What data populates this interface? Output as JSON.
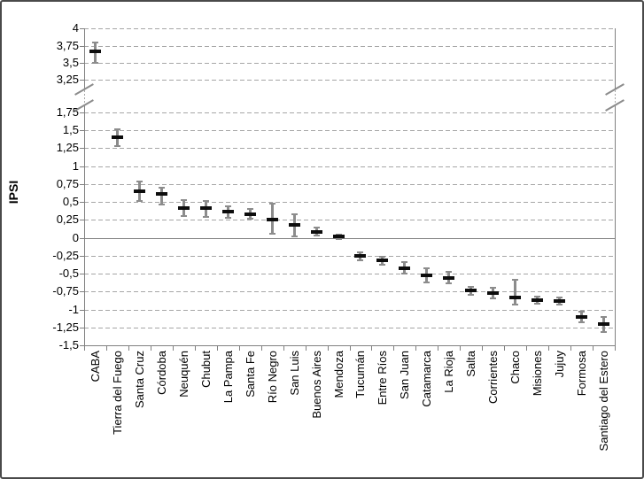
{
  "chart_data": {
    "type": "scatter",
    "title": "",
    "xlabel": "",
    "ylabel": "IPSI",
    "legend": "none",
    "grid": "dashed horizontal gridlines every 0.25",
    "zero_line": true,
    "y_axis": {
      "decimal_separator": ",",
      "axis_break": {
        "between_lower": 1.75,
        "between_upper": 3.25,
        "break_marks_on": [
          "left-axis",
          "right-border"
        ]
      },
      "segment_lower_range": [
        -1.5,
        1.75
      ],
      "segment_upper_range": [
        3.25,
        4
      ],
      "ticks": [
        {
          "v": 4,
          "label": "4"
        },
        {
          "v": 3.75,
          "label": "3,75"
        },
        {
          "v": 3.5,
          "label": "3,5"
        },
        {
          "v": 3.25,
          "label": "3,25"
        },
        {
          "v": 1.75,
          "label": "1,75"
        },
        {
          "v": 1.5,
          "label": "1,5"
        },
        {
          "v": 1.25,
          "label": "1,25"
        },
        {
          "v": 1,
          "label": "1"
        },
        {
          "v": 0.75,
          "label": "0,75"
        },
        {
          "v": 0.5,
          "label": "0,5"
        },
        {
          "v": 0.25,
          "label": "0,25"
        },
        {
          "v": 0,
          "label": "0"
        },
        {
          "v": -0.25,
          "label": "-0,25"
        },
        {
          "v": -0.5,
          "label": "-0,5"
        },
        {
          "v": -0.75,
          "label": "-0,75"
        },
        {
          "v": -1,
          "label": "-1"
        },
        {
          "v": -1.25,
          "label": "-1,25"
        },
        {
          "v": -1.5,
          "label": "-1,5"
        }
      ]
    },
    "categories": [
      "CABA",
      "Tierra del Fuego",
      "Santa Cruz",
      "Córdoba",
      "Neuquén",
      "Chubut",
      "La Pampa",
      "Santa Fe",
      "Río Negro",
      "San Luis",
      "Buenos Aires",
      "Mendoza",
      "Tucumán",
      "Entre Ríos",
      "San Juan",
      "Catamarca",
      "La Rioja",
      "Salta",
      "Corrientes",
      "Chaco",
      "Misiones",
      "Jujuy",
      "Formosa",
      "Santiago del Estero"
    ],
    "series": [
      {
        "name": "IPSI",
        "marker": "black horizontal dash with gray error bar",
        "values": [
          3.66,
          1.41,
          0.65,
          0.61,
          0.42,
          0.41,
          0.37,
          0.33,
          0.25,
          0.18,
          0.08,
          0.02,
          -0.25,
          -0.31,
          -0.42,
          -0.52,
          -0.56,
          -0.73,
          -0.77,
          -0.83,
          -0.87,
          -0.88,
          -1.1,
          -1.2
        ],
        "ci_low": [
          3.5,
          1.28,
          0.52,
          0.47,
          0.31,
          0.29,
          0.28,
          0.27,
          0.06,
          0.02,
          0.03,
          -0.02,
          -0.31,
          -0.37,
          -0.5,
          -0.62,
          -0.63,
          -0.79,
          -0.85,
          -0.93,
          -0.92,
          -0.93,
          -1.18,
          -1.32
        ],
        "ci_high": [
          3.79,
          1.52,
          0.78,
          0.7,
          0.53,
          0.52,
          0.44,
          0.4,
          0.48,
          0.33,
          0.14,
          0.05,
          -0.2,
          -0.26,
          -0.34,
          -0.42,
          -0.48,
          -0.68,
          -0.7,
          -0.58,
          -0.82,
          -0.83,
          -1.03,
          -1.1
        ]
      }
    ]
  },
  "style": {
    "background": "#ffffff",
    "figure_border": "#4a4a4a",
    "axis_color": "#808080",
    "gridline_color": "#a6a6a6",
    "marker_color": "#0d0d0d",
    "error_bar_color": "#8c8c8c",
    "text_color": "#000000"
  }
}
